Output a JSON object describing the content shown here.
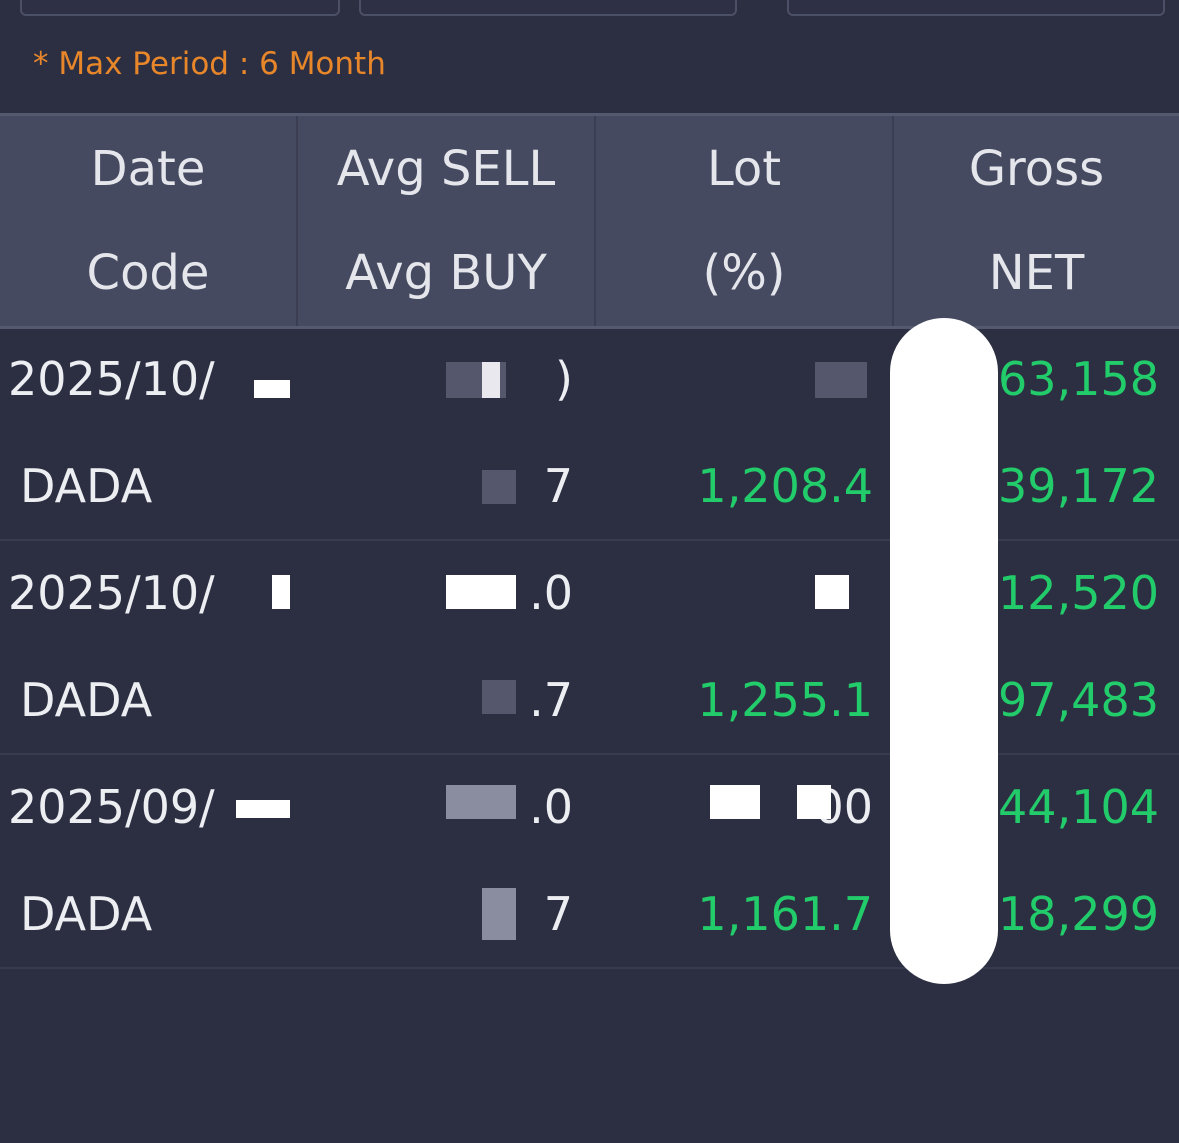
{
  "note": "* Max Period : 6 Month",
  "header": {
    "row1": [
      "Date",
      "Avg SELL",
      "Lot",
      "Gross"
    ],
    "row2": [
      "Code",
      "Avg BUY",
      "(%)",
      "NET"
    ]
  },
  "records": [
    {
      "date": "2025/10/",
      "code": "DADA",
      "avg_sell": ")",
      "avg_buy": "7",
      "lot": "",
      "pct": "1,208.4",
      "gross": "63,158",
      "net": "39,172"
    },
    {
      "date": "2025/10/",
      "code": "DADA",
      "avg_sell": ".0",
      "avg_buy": ".7",
      "lot": "",
      "pct": "1,255.1",
      "gross": "712,520",
      "net": "97,483"
    },
    {
      "date": "2025/09/",
      "code": "DADA",
      "avg_sell": ".0",
      "avg_buy": "7",
      "lot": "00",
      "pct": "1,161.7",
      "gross": "244,104",
      "net": "118,299"
    }
  ],
  "colors": {
    "background": "#2c2f42",
    "header": "#464a60",
    "accent": "#e8862a",
    "positive": "#22cc6a"
  }
}
